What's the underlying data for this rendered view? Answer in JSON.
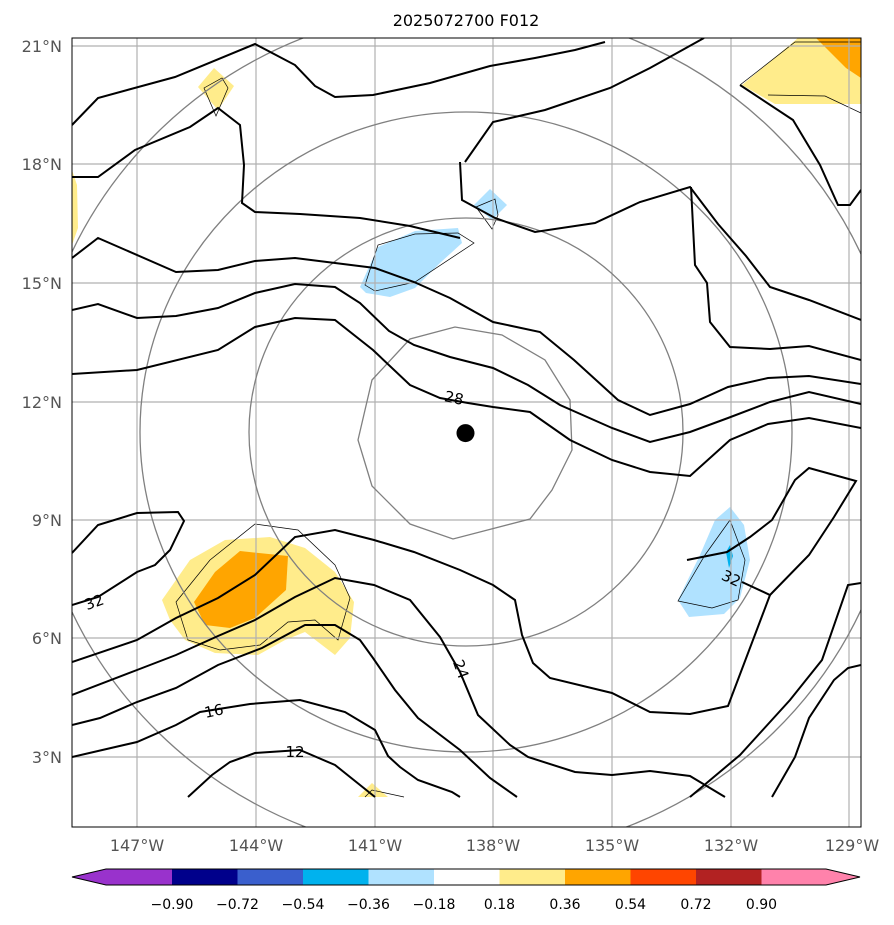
{
  "title": "2025072700 F012",
  "map": {
    "lat_labels": [
      "21°N",
      "18°N",
      "15°N",
      "12°N",
      "9°N",
      "6°N",
      "3°N"
    ],
    "lon_labels": [
      "147°W",
      "144°W",
      "141°W",
      "138°W",
      "135°W",
      "132°W",
      "129°W"
    ],
    "lat_range": [
      1.2,
      21.2
    ],
    "lon_range": [
      -148.6,
      -128.7
    ],
    "storm_center": {
      "lat": 11.2,
      "lon": -138.7
    },
    "contour_labels": [
      "28",
      "32",
      "24",
      "32",
      "16",
      "12"
    ]
  },
  "colorbar": {
    "tick_labels": [
      "−0.90",
      "−0.72",
      "−0.54",
      "−0.36",
      "−0.18",
      "0.18",
      "0.36",
      "0.54",
      "0.72",
      "0.90"
    ],
    "colors": [
      "#9932cc",
      "#00008b",
      "#3a5fcd",
      "#00b2ee",
      "#b0e2ff",
      "#ffffff",
      "#ffec8b",
      "#ffa500",
      "#ff4500",
      "#b22222",
      "#ff82ab"
    ]
  }
}
